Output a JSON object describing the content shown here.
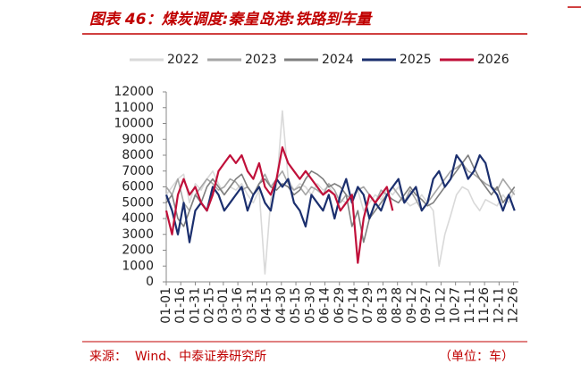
{
  "chart_data": {
    "type": "line",
    "title": "图表 46：煤炭调度:秦皇岛港:铁路到车量",
    "source": "来源：  Wind、中泰证券研究所",
    "unit": "（单位：车）",
    "x": [
      1,
      7,
      13,
      19,
      25,
      31,
      37,
      43,
      49,
      55,
      61,
      67,
      73,
      79,
      85,
      91,
      97,
      103,
      109,
      115,
      121,
      127,
      133,
      139,
      145,
      151,
      157,
      163,
      169,
      175,
      181,
      187,
      193,
      199,
      205,
      211,
      217,
      223,
      229,
      235,
      241,
      247,
      253,
      259,
      265,
      271,
      277,
      283,
      289,
      295,
      301,
      307,
      313,
      319,
      325,
      331,
      337,
      343,
      349,
      355,
      361
    ],
    "xlim": [
      1,
      365
    ],
    "xticks": [
      {
        "value": 1,
        "label": "01-01"
      },
      {
        "value": 16,
        "label": "01-16"
      },
      {
        "value": 31,
        "label": "01-31"
      },
      {
        "value": 46,
        "label": "02-15"
      },
      {
        "value": 60,
        "label": "03-01"
      },
      {
        "value": 75,
        "label": "03-16"
      },
      {
        "value": 90,
        "label": "03-31"
      },
      {
        "value": 105,
        "label": "04-15"
      },
      {
        "value": 120,
        "label": "04-30"
      },
      {
        "value": 135,
        "label": "05-15"
      },
      {
        "value": 150,
        "label": "05-30"
      },
      {
        "value": 165,
        "label": "06-14"
      },
      {
        "value": 180,
        "label": "06-29"
      },
      {
        "value": 195,
        "label": "07-14"
      },
      {
        "value": 210,
        "label": "07-29"
      },
      {
        "value": 225,
        "label": "08-13"
      },
      {
        "value": 240,
        "label": "08-28"
      },
      {
        "value": 255,
        "label": "09-12"
      },
      {
        "value": 270,
        "label": "09-27"
      },
      {
        "value": 285,
        "label": "10-12"
      },
      {
        "value": 300,
        "label": "10-27"
      },
      {
        "value": 315,
        "label": "11-11"
      },
      {
        "value": 330,
        "label": "11-26"
      },
      {
        "value": 345,
        "label": "12-11"
      },
      {
        "value": 360,
        "label": "12-26"
      }
    ],
    "ylim": [
      0,
      12000
    ],
    "yticks": [
      0,
      1000,
      2000,
      3000,
      4000,
      5000,
      6000,
      7000,
      8000,
      9000,
      10000,
      11000,
      12000
    ],
    "series": [
      {
        "name": "2022",
        "color": "#d9d9d9",
        "values": [
          5500,
          6000,
          6500,
          6800,
          5000,
          6200,
          5800,
          6500,
          7000,
          6200,
          5500,
          6000,
          5800,
          6200,
          5500,
          5000,
          5800,
          500,
          5200,
          6000,
          10800,
          6500,
          5800,
          6200,
          6000,
          5500,
          6200,
          5800,
          6000,
          5500,
          5200,
          5000,
          5500,
          5800,
          4500,
          5000,
          5500,
          5200,
          5800,
          5500,
          6000,
          5200,
          4800,
          5000,
          5500,
          5000,
          4500,
          1000,
          3000,
          4200,
          5500,
          6000,
          5800,
          5000,
          4500,
          5200,
          5000,
          4800,
          5500,
          5000,
          5800
        ]
      },
      {
        "name": "2023",
        "color": "#a6a6a6",
        "values": [
          6000,
          5500,
          6500,
          5000,
          4500,
          5500,
          6000,
          6500,
          6200,
          5800,
          6000,
          6500,
          6300,
          5800,
          6000,
          5500,
          6200,
          6800,
          6000,
          6500,
          7000,
          6200,
          5800,
          6000,
          5500,
          6000,
          5800,
          5500,
          6200,
          5800,
          5000,
          5500,
          5200,
          5800,
          6000,
          5500,
          5000,
          5800,
          5500,
          6000,
          5500,
          5000,
          5800,
          5200,
          4500,
          5000,
          5500,
          6000,
          6500,
          7000,
          7200,
          7500,
          7000,
          6800,
          6500,
          6200,
          6000,
          5800,
          6500,
          6000,
          5500
        ]
      },
      {
        "name": "2024",
        "color": "#7f7f7f",
        "values": [
          5000,
          5500,
          4000,
          3500,
          4500,
          5500,
          5000,
          6000,
          6500,
          6000,
          5500,
          6000,
          6500,
          6800,
          6000,
          5500,
          6200,
          6500,
          6000,
          5800,
          6200,
          6000,
          5500,
          5800,
          6500,
          7000,
          6800,
          6500,
          6000,
          6200,
          6000,
          5500,
          3500,
          4500,
          2500,
          4000,
          4500,
          5000,
          5500,
          5200,
          5000,
          5500,
          6000,
          5500,
          5200,
          4800,
          5000,
          5500,
          6000,
          6500,
          7000,
          7500,
          8000,
          7200,
          6500,
          6000,
          5500,
          6000,
          5000,
          5500,
          6000
        ]
      },
      {
        "name": "2025",
        "color": "#1b2f6e",
        "values": [
          5500,
          4500,
          3000,
          5000,
          2500,
          4500,
          5000,
          4500,
          6000,
          5500,
          4500,
          5000,
          5500,
          6000,
          4500,
          5500,
          6000,
          5000,
          4500,
          6500,
          6000,
          6500,
          5000,
          4500,
          3500,
          5500,
          5000,
          4500,
          5500,
          4000,
          5500,
          6500,
          5000,
          6000,
          5500,
          4000,
          5000,
          4500,
          5500,
          6000,
          6500,
          5000,
          5500,
          6000,
          4500,
          5000,
          6500,
          7000,
          6000,
          6500,
          8000,
          7500,
          6500,
          7000,
          8000,
          7500,
          6000,
          5500,
          4500,
          5500,
          4500
        ]
      },
      {
        "name": "2026",
        "color": "#c0103a",
        "values": [
          4500,
          3000,
          5500,
          6500,
          5500,
          6000,
          5000,
          4500,
          5500,
          7000,
          7500,
          8000,
          7500,
          8000,
          7000,
          6500,
          7500,
          6000,
          5500,
          6500,
          8500,
          7500,
          7000,
          6500,
          7000,
          6500,
          6000,
          5500,
          5800,
          5500,
          4500,
          5000,
          5500,
          1200,
          4000,
          5500,
          5000,
          5500,
          6000,
          4500,
          null,
          null,
          null,
          null,
          null,
          null,
          null,
          null,
          null,
          null,
          null,
          null,
          null,
          null,
          null,
          null,
          null,
          null,
          null,
          null,
          null
        ]
      }
    ]
  }
}
